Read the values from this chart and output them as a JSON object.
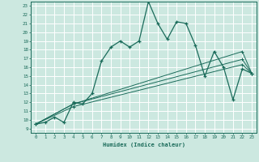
{
  "xlabel": "Humidex (Indice chaleur)",
  "bg_color": "#cce8e0",
  "grid_color": "#ffffff",
  "line_color": "#1a6b5a",
  "xlim": [
    -0.5,
    23.5
  ],
  "ylim": [
    8.5,
    23.5
  ],
  "yticks": [
    9,
    10,
    11,
    12,
    13,
    14,
    15,
    16,
    17,
    18,
    19,
    20,
    21,
    22,
    23
  ],
  "xticks": [
    0,
    1,
    2,
    3,
    4,
    5,
    6,
    7,
    8,
    9,
    10,
    11,
    12,
    13,
    14,
    15,
    16,
    17,
    18,
    19,
    20,
    21,
    22,
    23
  ],
  "line1_x": [
    0,
    1,
    2,
    3,
    4,
    5,
    6,
    7,
    8,
    9,
    10,
    11,
    12,
    13,
    14,
    15,
    16,
    17,
    18,
    19,
    20,
    21,
    22,
    23
  ],
  "line1_y": [
    9.5,
    9.7,
    10.3,
    9.7,
    12.0,
    11.8,
    13.0,
    16.7,
    18.3,
    19.0,
    18.3,
    19.0,
    23.5,
    21.0,
    19.2,
    21.2,
    21.0,
    18.5,
    15.0,
    17.8,
    16.0,
    12.3,
    15.8,
    15.3
  ],
  "line2_x": [
    0,
    4,
    22,
    23
  ],
  "line2_y": [
    9.5,
    11.8,
    17.8,
    15.3
  ],
  "line3_x": [
    0,
    4,
    22,
    23
  ],
  "line3_y": [
    9.5,
    11.8,
    16.9,
    15.3
  ],
  "line4_x": [
    0,
    4,
    22,
    23
  ],
  "line4_y": [
    9.5,
    11.5,
    16.3,
    15.3
  ]
}
